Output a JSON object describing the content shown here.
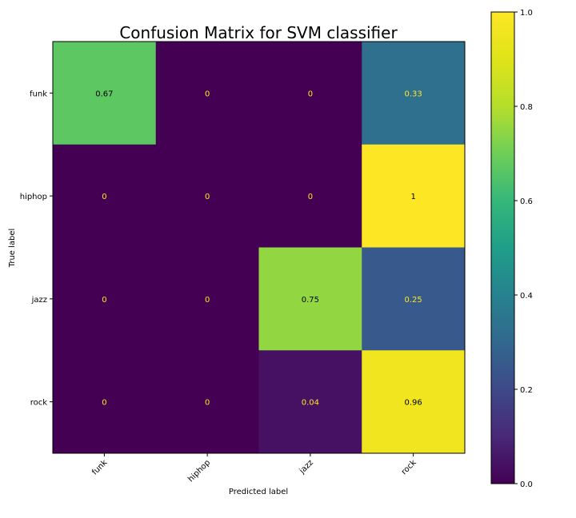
{
  "chart_data": {
    "type": "heatmap",
    "title": "Confusion Matrix for SVM classifier",
    "xlabel": "Predicted label",
    "ylabel": "True label",
    "x_categories": [
      "funk",
      "hiphop",
      "jazz",
      "rock"
    ],
    "y_categories": [
      "funk",
      "hiphop",
      "jazz",
      "rock"
    ],
    "values": [
      [
        0.67,
        0,
        0,
        0.33
      ],
      [
        0,
        0,
        0,
        1
      ],
      [
        0,
        0,
        0.75,
        0.25
      ],
      [
        0,
        0,
        0.04,
        0.96
      ]
    ],
    "value_labels": [
      [
        "0.67",
        "0",
        "0",
        "0.33"
      ],
      [
        "0",
        "0",
        "0",
        "1"
      ],
      [
        "0",
        "0",
        "0.75",
        "0.25"
      ],
      [
        "0",
        "0",
        "0.04",
        "0.96"
      ]
    ],
    "colormap": "viridis",
    "colorbar": {
      "range": [
        0.0,
        1.0
      ],
      "ticks": [
        0.0,
        0.2,
        0.4,
        0.6,
        0.8,
        1.0
      ],
      "tick_labels": [
        "0.0",
        "0.2",
        "0.4",
        "0.6",
        "0.8",
        "1.0"
      ]
    },
    "x_tick_rotation_deg": 45,
    "grid": false
  }
}
